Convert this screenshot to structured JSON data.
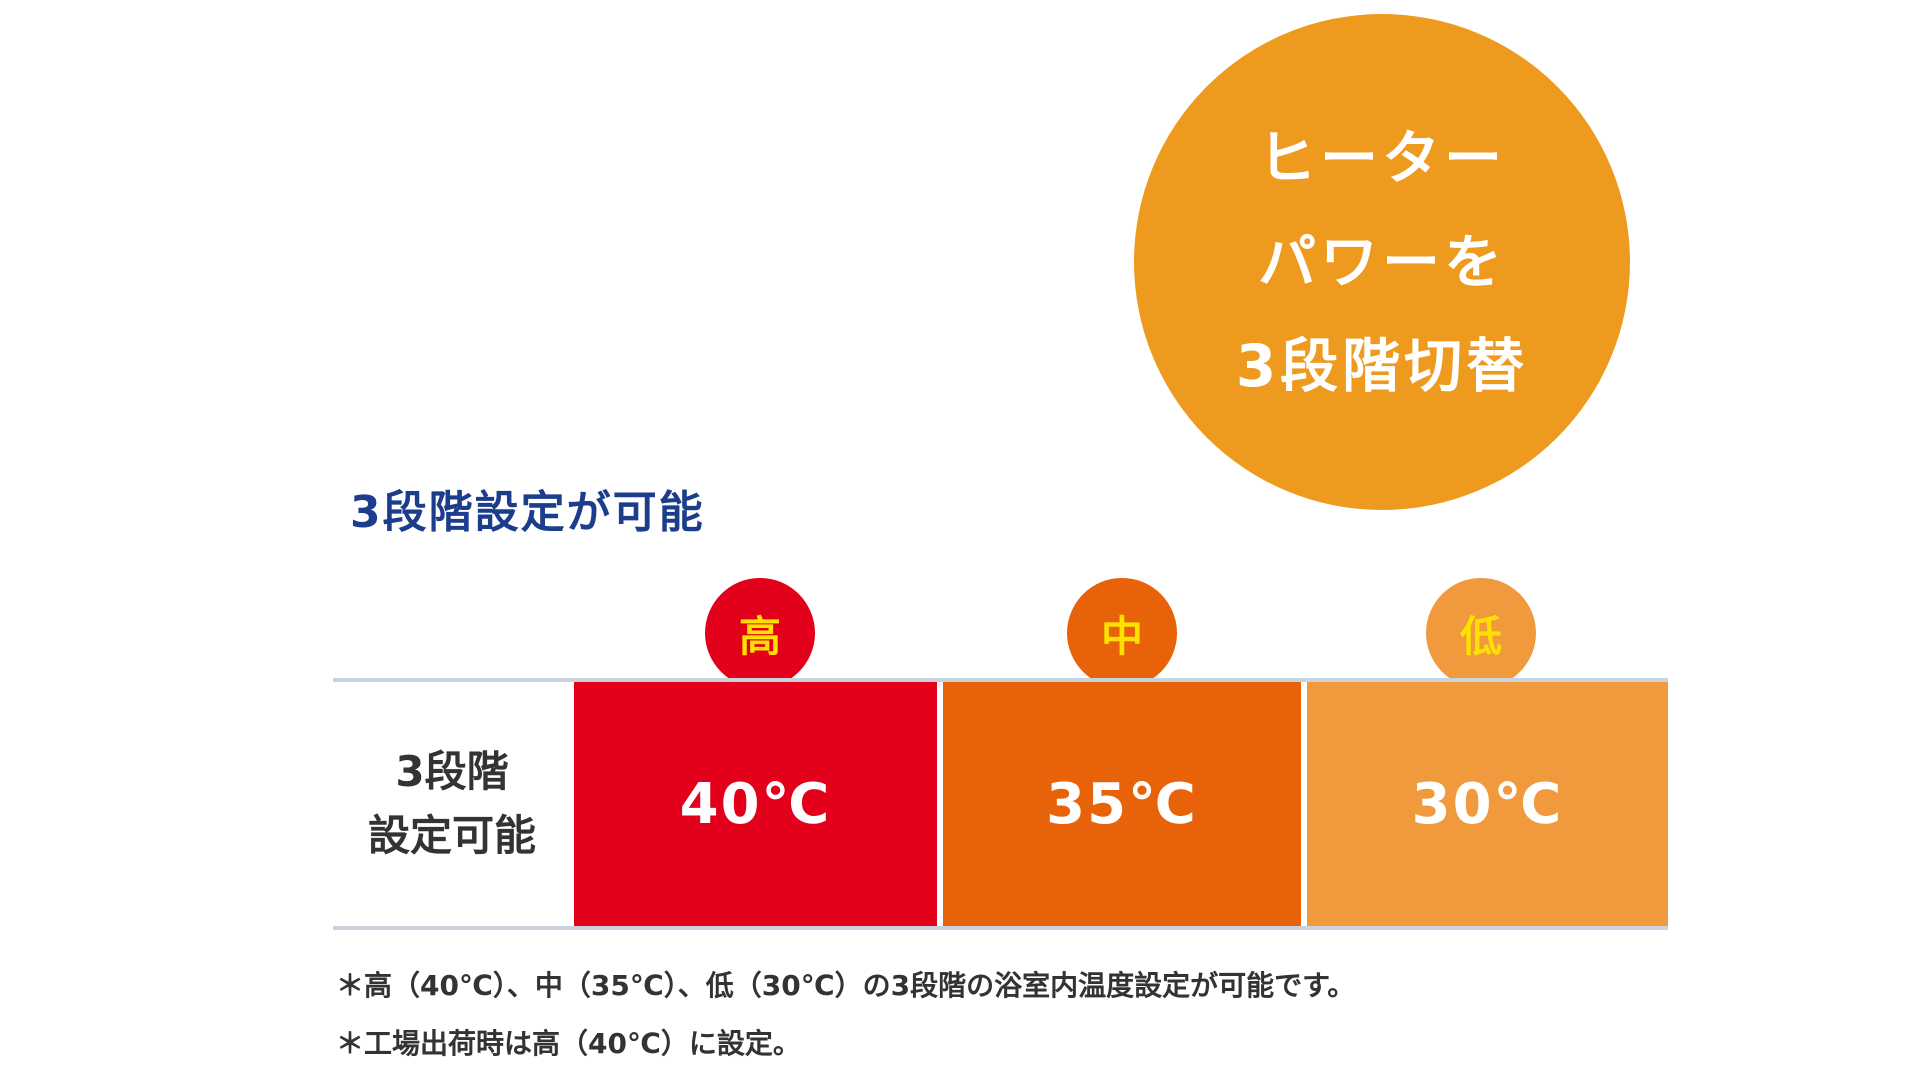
{
  "badge": {
    "lines": [
      "ヒーター",
      "パワーを",
      "3段階切替"
    ]
  },
  "section_title": "3段階設定が可能",
  "levels": [
    {
      "label": "高",
      "color": "#e2001a"
    },
    {
      "label": "中",
      "color": "#e8620a"
    },
    {
      "label": "低",
      "color": "#f0993d"
    }
  ],
  "table": {
    "row_label_lines": [
      "3段階",
      "設定可能"
    ],
    "cells": [
      {
        "value": "40℃",
        "color": "#e2001a"
      },
      {
        "value": "35℃",
        "color": "#e8620a"
      },
      {
        "value": "30℃",
        "color": "#f0993d"
      }
    ]
  },
  "notes": [
    "＊高（40℃）、中（35℃）、低（30℃）の3段階の浴室内温度設定が可能です。",
    "＊工場出荷時は高（40℃）に設定。"
  ]
}
